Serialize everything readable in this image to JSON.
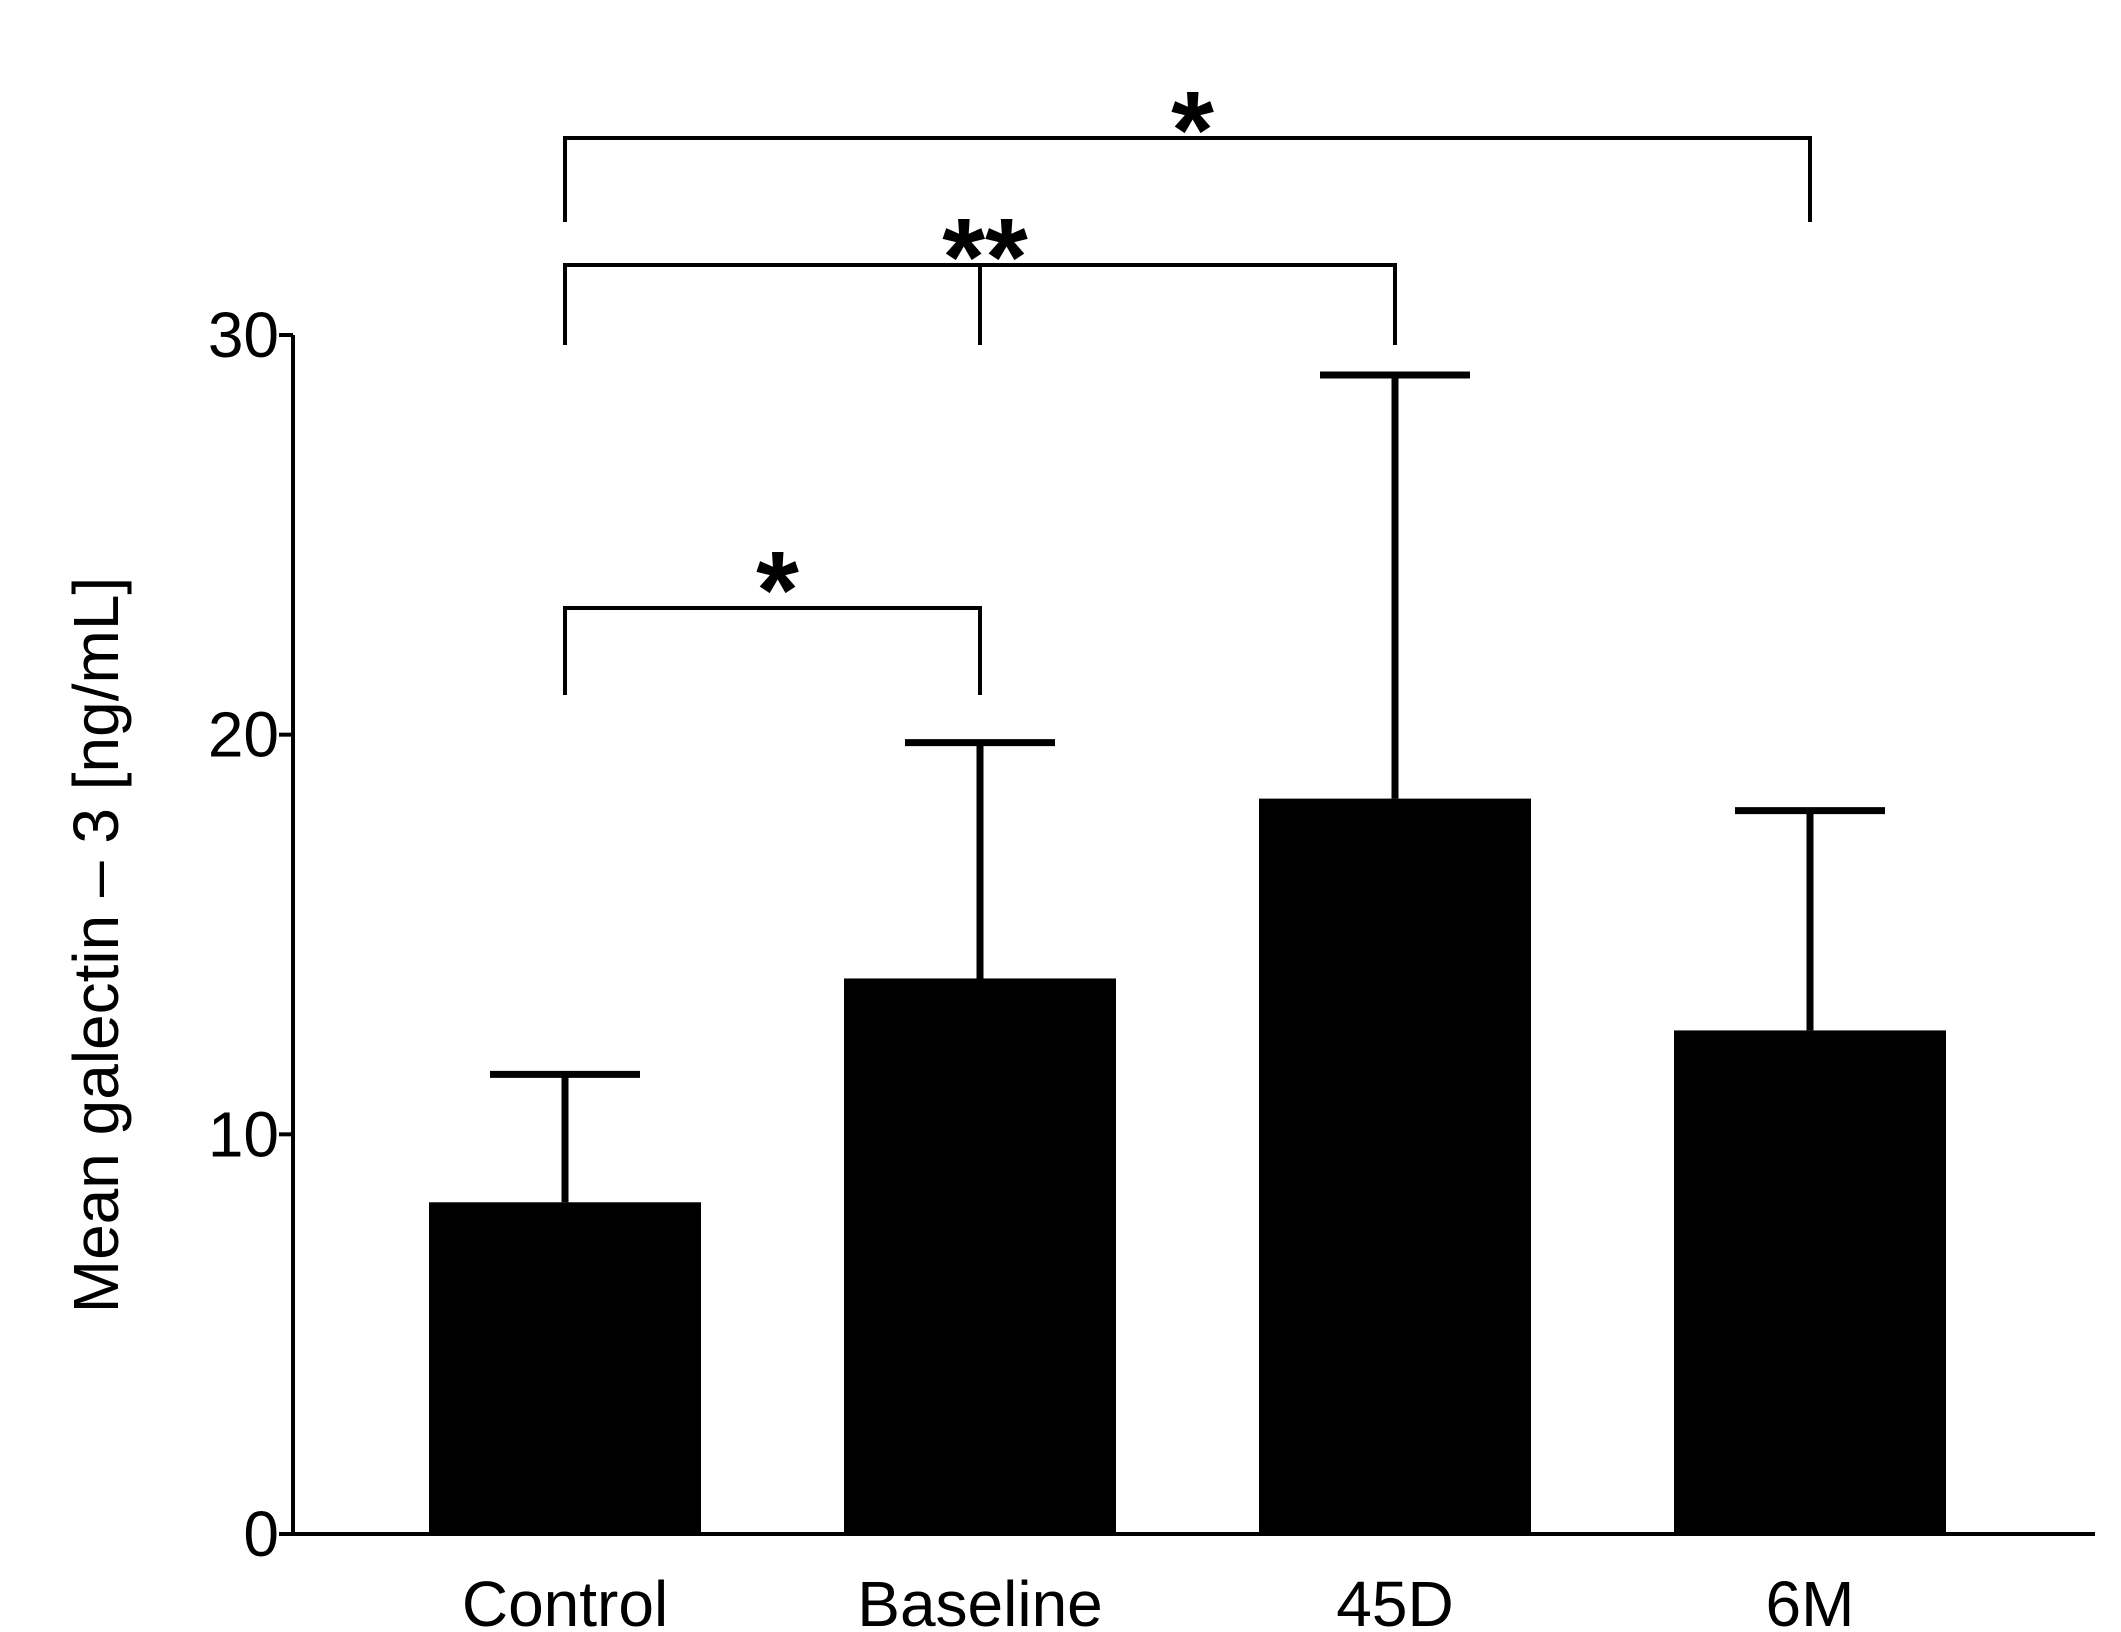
{
  "chart_data": {
    "type": "bar",
    "title": "",
    "xlabel": "",
    "ylabel": "Mean galectin – 3 [ng/mL]",
    "categories": [
      "Control",
      "Baseline",
      "45D",
      "6M"
    ],
    "values": [
      8.3,
      13.9,
      18.4,
      12.6
    ],
    "error_upper": [
      11.5,
      19.8,
      29.0,
      18.1
    ],
    "ylim": [
      0,
      30
    ],
    "yticks": [
      0,
      10,
      20,
      30
    ],
    "ytick_labels": [
      "0",
      "10",
      "20",
      "30"
    ],
    "grid": false,
    "legend": "none",
    "bar_color": "#000000",
    "significance": [
      {
        "from": "Control",
        "to": "Baseline",
        "label": "*"
      },
      {
        "from": "Control",
        "to": "45D",
        "label": "**"
      },
      {
        "from": "Control",
        "to": "6M",
        "label": "*"
      }
    ]
  }
}
